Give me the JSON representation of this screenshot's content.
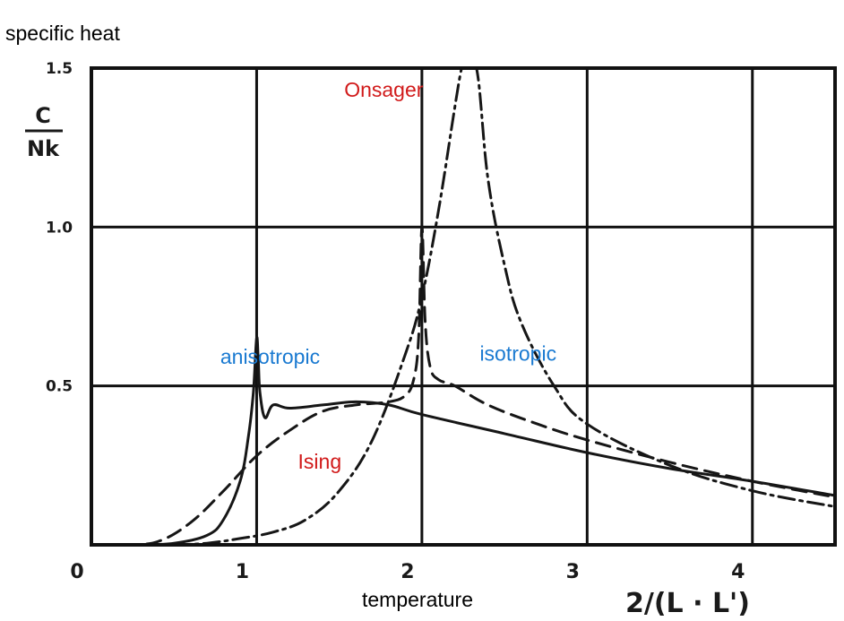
{
  "chart_data": {
    "type": "line",
    "title": "specific heat",
    "ylabel_top": "C",
    "ylabel_bottom": "Nk",
    "xlabel_formula": "2/(L · L')",
    "xlabel": "temperature",
    "xlim": [
      0,
      4.5
    ],
    "ylim": [
      0,
      1.5
    ],
    "grid": true,
    "x_ticks": [
      {
        "value": 0,
        "label": "0"
      },
      {
        "value": 1,
        "label": "1"
      },
      {
        "value": 2,
        "label": "2"
      },
      {
        "value": 3,
        "label": "3"
      },
      {
        "value": 4,
        "label": "4"
      }
    ],
    "y_ticks": [
      {
        "value": 0.5,
        "label": "0.5"
      },
      {
        "value": 1.0,
        "label": "1.0"
      },
      {
        "value": 1.5,
        "label": "1.5"
      }
    ],
    "series": [
      {
        "name": "anisotropic",
        "style": "solid",
        "x": [
          0.3,
          0.5,
          0.7,
          0.8,
          0.9,
          0.95,
          0.98,
          1.0,
          1.01,
          1.02,
          1.05,
          1.1,
          1.2,
          1.4,
          1.6,
          1.8,
          2.0,
          2.5,
          3.0,
          3.5,
          4.0,
          4.5
        ],
        "y": [
          0.0,
          0.005,
          0.03,
          0.08,
          0.2,
          0.34,
          0.48,
          0.65,
          0.58,
          0.48,
          0.4,
          0.44,
          0.43,
          0.44,
          0.45,
          0.44,
          0.41,
          0.35,
          0.29,
          0.24,
          0.2,
          0.155
        ]
      },
      {
        "name": "Ising",
        "style": "dashed",
        "x": [
          0.2,
          0.4,
          0.6,
          0.8,
          1.0,
          1.2,
          1.4,
          1.6,
          1.8,
          1.9,
          1.95,
          1.98,
          2.0,
          2.02,
          2.05,
          2.1,
          2.2,
          2.4,
          2.7,
          3.0,
          3.5,
          4.0,
          4.5
        ],
        "y": [
          0.0,
          0.01,
          0.07,
          0.17,
          0.28,
          0.36,
          0.42,
          0.44,
          0.45,
          0.47,
          0.52,
          0.65,
          1.0,
          0.7,
          0.56,
          0.52,
          0.5,
          0.44,
          0.38,
          0.33,
          0.26,
          0.2,
          0.15
        ]
      },
      {
        "name": "isotropic",
        "style": "dashdot",
        "x": [
          0.5,
          0.7,
          0.9,
          1.1,
          1.3,
          1.5,
          1.7,
          1.9,
          2.0,
          2.1,
          2.2,
          2.24,
          2.25,
          2.33,
          2.4,
          2.5,
          2.6,
          2.8,
          3.0,
          3.5,
          4.0,
          4.5
        ],
        "y": [
          0.0,
          0.005,
          0.02,
          0.04,
          0.08,
          0.17,
          0.33,
          0.6,
          0.78,
          1.05,
          1.38,
          1.5,
          1.5,
          1.5,
          1.15,
          0.88,
          0.7,
          0.5,
          0.38,
          0.25,
          0.17,
          0.12
        ]
      }
    ],
    "annotations": [
      {
        "text": "Onsager",
        "color": "#d11a1a",
        "x": 1.53,
        "y": 1.41
      },
      {
        "text": "anisotropic",
        "color": "#1a7ad1",
        "x": 0.78,
        "y": 0.57
      },
      {
        "text": "isotropic",
        "color": "#1a7ad1",
        "x": 2.35,
        "y": 0.58
      },
      {
        "text": "Ising",
        "color": "#d11a1a",
        "x": 1.25,
        "y": 0.24
      }
    ]
  }
}
